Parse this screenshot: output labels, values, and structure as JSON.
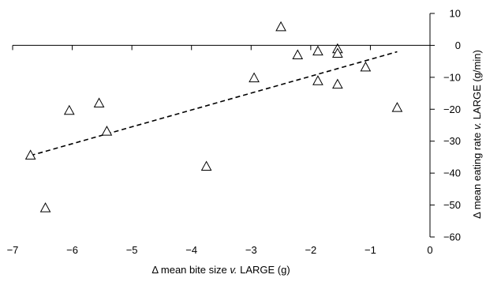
{
  "chart_data": {
    "type": "scatter",
    "title": "",
    "xlabel": {
      "pre": "Δ mean bite size ",
      "italic": "v.",
      "post": " LARGE (g)"
    },
    "ylabel": {
      "pre": "Δ mean eating rate ",
      "italic": "v.",
      "post": " LARGE  (g/min)"
    },
    "xlim": [
      -7,
      0
    ],
    "ylim": [
      -60,
      10
    ],
    "grid": false,
    "legend": "none",
    "marker": "open-triangle",
    "x_ticks": [
      -7,
      -6,
      -5,
      -4,
      -3,
      -2,
      -1,
      0
    ],
    "x_tick_labels": [
      "−7",
      "−6",
      "−5",
      "−4",
      "−3",
      "−2",
      "−1",
      "0"
    ],
    "y_ticks": [
      10,
      0,
      -10,
      -20,
      -30,
      -40,
      -50,
      -60
    ],
    "y_tick_labels": [
      "10",
      "0",
      "−10",
      "−20",
      "−30",
      "−40",
      "−50",
      "−60"
    ],
    "points": [
      {
        "x": -6.7,
        "y": -34.5
      },
      {
        "x": -6.45,
        "y": -51
      },
      {
        "x": -6.05,
        "y": -20.5
      },
      {
        "x": -5.55,
        "y": -18.2
      },
      {
        "x": -5.42,
        "y": -27
      },
      {
        "x": -3.75,
        "y": -38
      },
      {
        "x": -2.95,
        "y": -10.3
      },
      {
        "x": -2.5,
        "y": 5.7
      },
      {
        "x": -2.22,
        "y": -3.1
      },
      {
        "x": -1.88,
        "y": -1.9
      },
      {
        "x": -1.88,
        "y": -11.2
      },
      {
        "x": -1.55,
        "y": -1.2
      },
      {
        "x": -1.55,
        "y": -2.6
      },
      {
        "x": -1.55,
        "y": -12.3
      },
      {
        "x": -1.08,
        "y": -6.9
      },
      {
        "x": -0.55,
        "y": -19.6
      }
    ],
    "trendline": {
      "style": "dashed",
      "x": [
        -6.7,
        -0.55
      ],
      "y": [
        -34.5,
        -2.0
      ]
    }
  }
}
